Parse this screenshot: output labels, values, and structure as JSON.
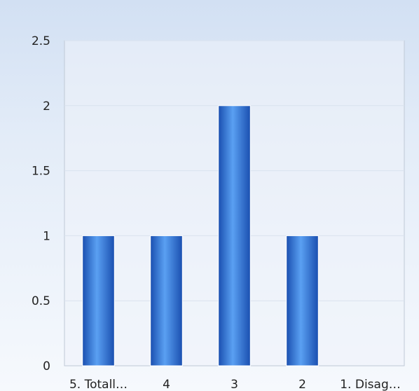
{
  "chart_data": {
    "type": "bar",
    "categories": [
      "5. Totall…",
      "4",
      "3",
      "2",
      "1. Disag…"
    ],
    "values": [
      1,
      1,
      2,
      1,
      0
    ],
    "y_ticks": [
      "0",
      "0.5",
      "1",
      "1.5",
      "2",
      "2.5"
    ],
    "ylim": [
      0,
      2.5
    ],
    "grid": true,
    "legend": "none",
    "title": "",
    "xlabel": "",
    "ylabel": "",
    "colors": {
      "bar_dark": "#1a4fb0",
      "bar_light": "#5aa0f2",
      "plot_bg": "#eef3fa",
      "grid": "#d9e2ee",
      "axis": "#bfc9d6"
    }
  }
}
